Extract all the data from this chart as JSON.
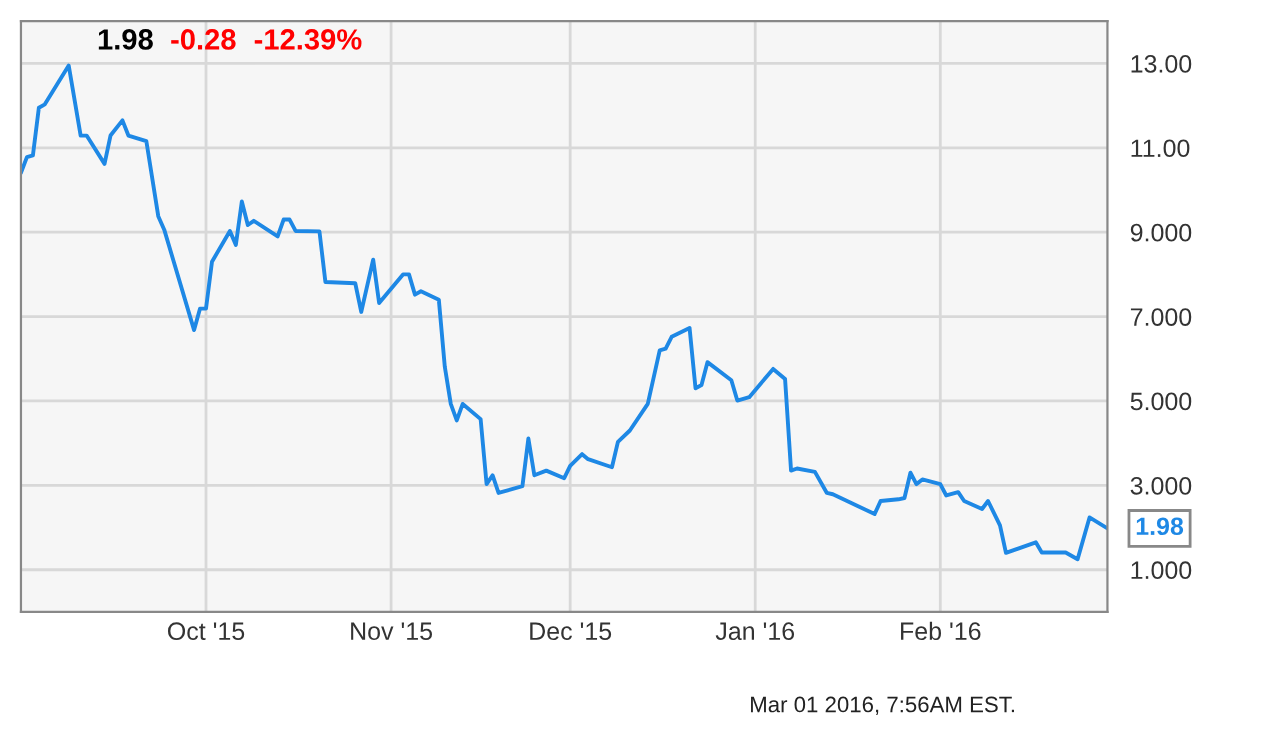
{
  "chart_data": {
    "type": "line",
    "x": [
      "2015-08-31",
      "2015-09-01",
      "2015-09-02",
      "2015-09-03",
      "2015-09-04",
      "2015-09-08",
      "2015-09-10",
      "2015-09-11",
      "2015-09-14",
      "2015-09-15",
      "2015-09-17",
      "2015-09-18",
      "2015-09-21",
      "2015-09-23",
      "2015-09-24",
      "2015-09-29",
      "2015-09-30",
      "2015-10-01",
      "2015-10-02",
      "2015-10-05",
      "2015-10-06",
      "2015-10-07",
      "2015-10-08",
      "2015-10-09",
      "2015-10-13",
      "2015-10-14",
      "2015-10-15",
      "2015-10-16",
      "2015-10-20",
      "2015-10-21",
      "2015-10-26",
      "2015-10-27",
      "2015-10-29",
      "2015-10-30",
      "2015-11-03",
      "2015-11-04",
      "2015-11-05",
      "2015-11-06",
      "2015-11-09",
      "2015-11-10",
      "2015-11-11",
      "2015-11-12",
      "2015-11-13",
      "2015-11-16",
      "2015-11-17",
      "2015-11-18",
      "2015-11-19",
      "2015-11-23",
      "2015-11-24",
      "2015-11-25",
      "2015-11-27",
      "2015-11-30",
      "2015-12-01",
      "2015-12-03",
      "2015-12-04",
      "2015-12-08",
      "2015-12-09",
      "2015-12-11",
      "2015-12-14",
      "2015-12-16",
      "2015-12-17",
      "2015-12-18",
      "2015-12-21",
      "2015-12-22",
      "2015-12-23",
      "2015-12-24",
      "2015-12-28",
      "2015-12-29",
      "2015-12-31",
      "2016-01-04",
      "2016-01-06",
      "2016-01-07",
      "2016-01-08",
      "2016-01-11",
      "2016-01-13",
      "2016-01-14",
      "2016-01-21",
      "2016-01-22",
      "2016-01-25",
      "2016-01-26",
      "2016-01-27",
      "2016-01-28",
      "2016-01-29",
      "2016-02-01",
      "2016-02-02",
      "2016-02-04",
      "2016-02-05",
      "2016-02-08",
      "2016-02-09",
      "2016-02-11",
      "2016-02-12",
      "2016-02-17",
      "2016-02-18",
      "2016-02-22",
      "2016-02-24",
      "2016-02-26",
      "2016-02-29"
    ],
    "series": [
      {
        "color": "#1e88e5",
        "values": [
          10.41,
          10.78,
          10.82,
          11.95,
          12.03,
          12.95,
          11.29,
          11.29,
          10.62,
          11.29,
          11.65,
          11.29,
          11.16,
          9.38,
          9.06,
          6.68,
          7.19,
          7.19,
          8.3,
          9.03,
          8.7,
          9.73,
          9.17,
          9.27,
          8.9,
          9.3,
          9.3,
          9.03,
          9.02,
          7.82,
          7.79,
          7.11,
          8.35,
          7.32,
          8.0,
          8.0,
          7.52,
          7.6,
          7.4,
          5.81,
          4.93,
          4.54,
          4.93,
          4.57,
          3.03,
          3.24,
          2.82,
          2.98,
          4.11,
          3.24,
          3.35,
          3.17,
          3.46,
          3.74,
          3.62,
          3.43,
          4.03,
          4.3,
          4.93,
          6.2,
          6.24,
          6.52,
          6.73,
          5.3,
          5.38,
          5.92,
          5.49,
          5.01,
          5.09,
          5.76,
          5.52,
          3.35,
          3.4,
          3.32,
          2.82,
          2.79,
          2.32,
          2.63,
          2.67,
          2.7,
          3.3,
          3.03,
          3.14,
          3.03,
          2.76,
          2.84,
          2.63,
          2.44,
          2.63,
          2.05,
          1.4,
          1.65,
          1.41,
          1.41,
          1.25,
          2.24,
          1.98
        ]
      }
    ],
    "xlim": [
      "2015-08-31",
      "2016-02-29"
    ],
    "xticks": [
      {
        "value": "2015-10-01",
        "label": "Oct '15"
      },
      {
        "value": "2015-11-01",
        "label": "Nov '15"
      },
      {
        "value": "2015-12-01",
        "label": "Dec '15"
      },
      {
        "value": "2016-01-01",
        "label": "Jan '16"
      },
      {
        "value": "2016-02-01",
        "label": "Feb '16"
      }
    ],
    "ylim": [
      0,
      14
    ],
    "yticks": [
      {
        "value": 1,
        "label": "1.000"
      },
      {
        "value": 3,
        "label": "3.000"
      },
      {
        "value": 5,
        "label": "5.000"
      },
      {
        "value": 7,
        "label": "7.000"
      },
      {
        "value": 9,
        "label": "9.000"
      },
      {
        "value": 11,
        "label": "11.00"
      },
      {
        "value": 13,
        "label": "13.00"
      }
    ],
    "grid": true,
    "annotations": [
      "1.98",
      "-0.28",
      "-12.39%",
      "Mar 01 2016, 7:56AM EST.",
      {
        "text": "1.98",
        "x": "2016-02-29",
        "y": 1.98
      }
    ]
  }
}
